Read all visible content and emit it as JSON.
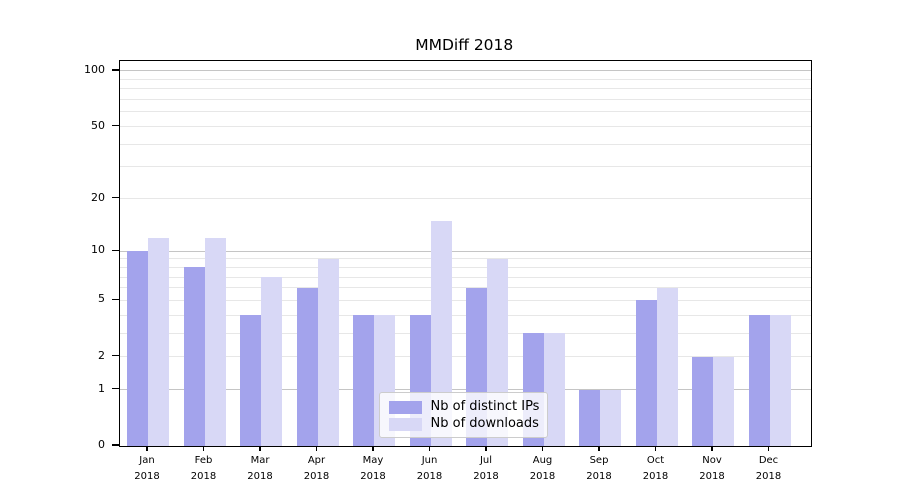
{
  "figure": {
    "title": "MMDiff 2018"
  },
  "chart_data": {
    "type": "bar",
    "title": "MMDiff 2018",
    "categories": [
      {
        "month": "Jan",
        "year": "2018"
      },
      {
        "month": "Feb",
        "year": "2018"
      },
      {
        "month": "Mar",
        "year": "2018"
      },
      {
        "month": "Apr",
        "year": "2018"
      },
      {
        "month": "May",
        "year": "2018"
      },
      {
        "month": "Jun",
        "year": "2018"
      },
      {
        "month": "Jul",
        "year": "2018"
      },
      {
        "month": "Aug",
        "year": "2018"
      },
      {
        "month": "Sep",
        "year": "2018"
      },
      {
        "month": "Oct",
        "year": "2018"
      },
      {
        "month": "Nov",
        "year": "2018"
      },
      {
        "month": "Dec",
        "year": "2018"
      }
    ],
    "series": [
      {
        "name": "Nb of distinct IPs",
        "color": "#a3a3ec",
        "values": [
          10,
          8,
          4,
          6,
          4,
          4,
          6,
          3,
          1,
          5,
          2,
          4
        ]
      },
      {
        "name": "Nb of downloads",
        "color": "#d8d8f6",
        "values": [
          12,
          12,
          7,
          9,
          4,
          15,
          9,
          3,
          1,
          6,
          2,
          4
        ]
      }
    ],
    "y_axis": {
      "scale": "log1p",
      "ticks": [
        100,
        50,
        20,
        10,
        5,
        2,
        1,
        0
      ],
      "tick_labels": [
        "100",
        "50",
        "20",
        "10",
        "5",
        "2",
        "1",
        "0"
      ],
      "minor_ticks": [
        90,
        80,
        70,
        60,
        40,
        30,
        9,
        8,
        7,
        6,
        4,
        3
      ],
      "emphasized": [
        100,
        10,
        1
      ],
      "top_value": 113.2,
      "ylim": [
        0,
        113.2
      ]
    },
    "legend": {
      "position": "lower center",
      "labels": [
        "Nb of distinct IPs",
        "Nb of downloads"
      ]
    },
    "grid": true
  },
  "colors": {
    "grid": "#e7e7e7",
    "grid_emph": "#c5c5c5",
    "legend_border": "#cccccc",
    "axis": "#000000",
    "background": "#ffffff"
  }
}
